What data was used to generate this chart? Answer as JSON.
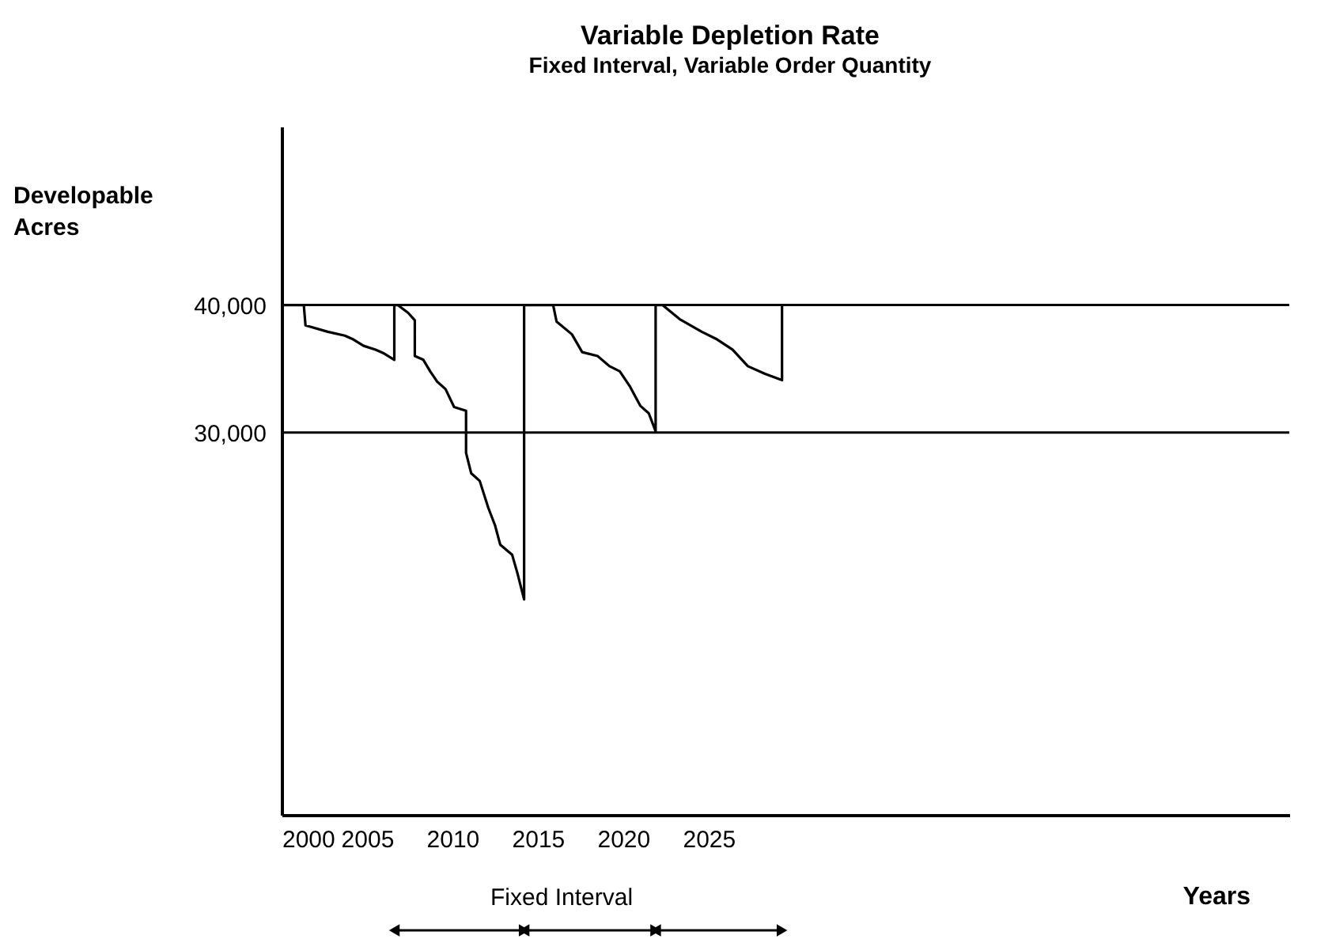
{
  "chart_data": {
    "type": "line",
    "title": "Variable Depletion Rate",
    "subtitle": "Fixed Interval, Variable Order Quantity",
    "xlabel": "Years",
    "ylabel": "Developable Acres",
    "series": [
      {
        "color": "#000000",
        "x": [
          2000,
          2001.3,
          2001.4,
          2002.7,
          2003.7,
          2004.2,
          2004.8,
          2005.5,
          2006.0,
          2006.6,
          2006.6,
          2006.8,
          2007.4,
          2007.8,
          2007.8,
          2008.3,
          2008.7,
          2009.1,
          2009.6,
          2010.1,
          2010.8,
          2010.8,
          2011.1,
          2011.6,
          2012.1,
          2012.5,
          2012.8,
          2013.5,
          2013.8,
          2014.2,
          2014.2,
          2015.9,
          2016.1,
          2017.0,
          2017.6,
          2018.5,
          2019.2,
          2019.8,
          2020.4,
          2021.0,
          2021.5,
          2021.9,
          2021.9,
          2022.3,
          2023.3,
          2024.6,
          2025.5,
          2026.4,
          2027.3,
          2028.3,
          2029.3,
          2029.3
        ],
        "values": [
          40000,
          40000,
          38400,
          37900,
          37600,
          37300,
          36800,
          36500,
          36200,
          35700,
          40000,
          40000,
          39400,
          38800,
          36000,
          35700,
          34800,
          34000,
          33400,
          32000,
          31700,
          28400,
          26800,
          26200,
          24100,
          22700,
          21200,
          20400,
          19000,
          16900,
          40000,
          40000,
          38700,
          37700,
          36300,
          36000,
          35200,
          34800,
          33600,
          32100,
          31500,
          30100,
          40000,
          40000,
          38900,
          37900,
          37300,
          36500,
          35200,
          34600,
          34100,
          40000
        ]
      }
    ],
    "xlim": [
      2000,
      2059
    ],
    "xticks": [
      2000,
      2005,
      2010,
      2015,
      2020,
      2025
    ],
    "ylim": [
      0,
      54000
    ],
    "yticks": [
      {
        "value": 30000,
        "label": "30,000"
      },
      {
        "value": 40000,
        "label": "40,000"
      }
    ],
    "ref_lines": [
      {
        "axis": "y",
        "value": 40000,
        "color": "#000000"
      },
      {
        "axis": "y",
        "value": 30000,
        "color": "#000000"
      }
    ],
    "annotations": [
      "Fixed Interval"
    ],
    "grid": false,
    "legend": false
  }
}
